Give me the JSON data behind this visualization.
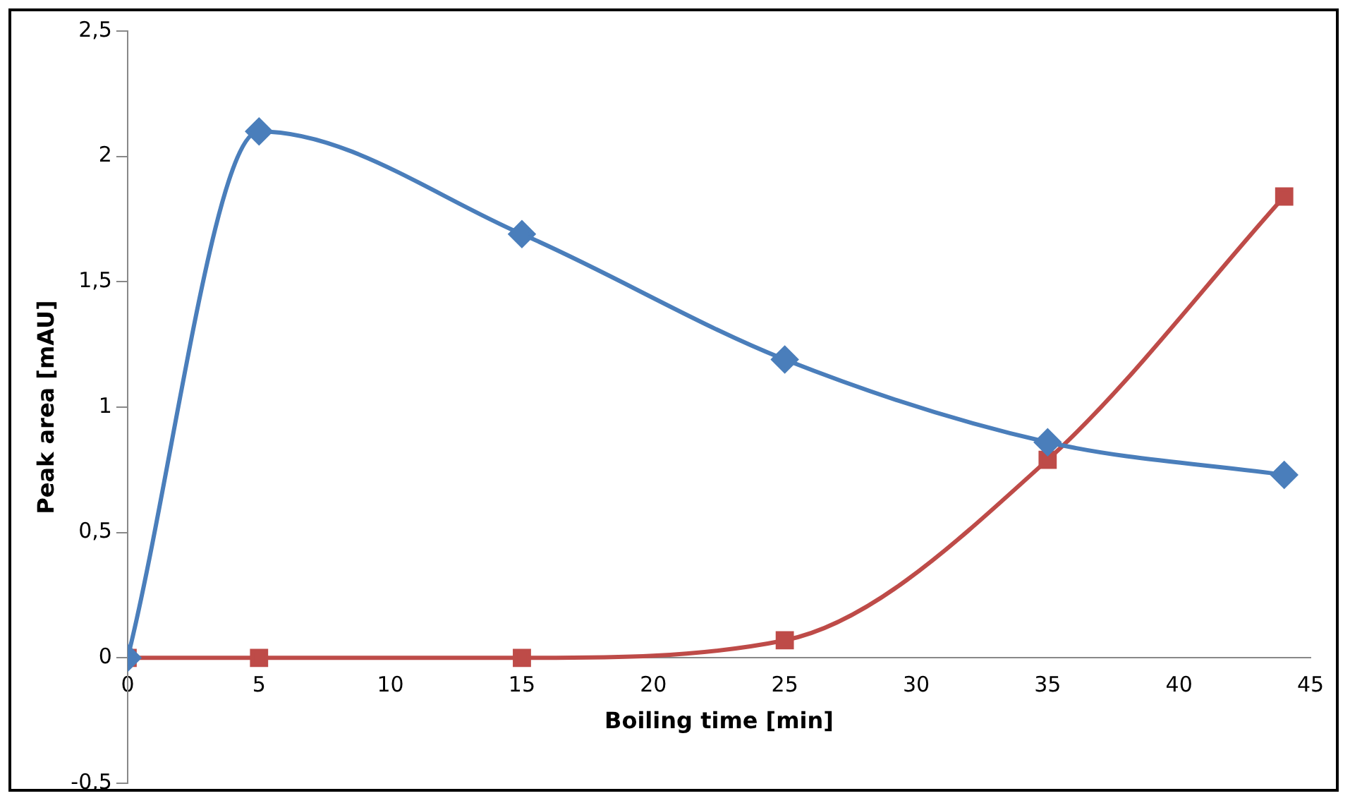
{
  "chart_data": {
    "type": "line",
    "xlabel": "Boiling time [min]",
    "ylabel": "Peak area [mAU]",
    "xlim": [
      0,
      45
    ],
    "xticks": [
      0,
      5,
      10,
      15,
      20,
      25,
      30,
      35,
      40,
      45
    ],
    "ylim": [
      -0.5,
      2.5
    ],
    "yticks": [
      {
        "value": -0.5,
        "label": "-0,5"
      },
      0,
      {
        "value": 0.5,
        "label": "0,5"
      },
      1,
      {
        "value": 1.5,
        "label": "1,5"
      },
      2,
      {
        "value": 2.5,
        "label": "2,5"
      }
    ],
    "grid": false,
    "legend": false,
    "series": [
      {
        "color": "#4a7ebb",
        "marker": "diamond",
        "x": [
          0,
          5,
          15,
          25,
          35,
          44
        ],
        "values": [
          0,
          2.1,
          1.69,
          1.19,
          0.86,
          0.73
        ]
      },
      {
        "color": "#be4b48",
        "marker": "square",
        "x": [
          0,
          5,
          15,
          25,
          35,
          44
        ],
        "values": [
          0,
          0,
          0,
          0.07,
          0.79,
          1.84
        ]
      }
    ]
  }
}
